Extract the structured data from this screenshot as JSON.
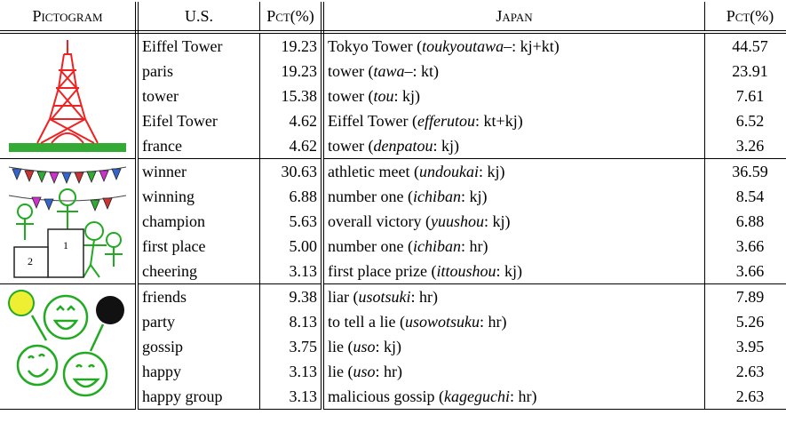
{
  "header": {
    "pictogram": "Pictogram",
    "us": "U.S.",
    "us_pct": "Pct(%)",
    "japan": "Japan",
    "japan_pct": "Pct(%)"
  },
  "groups": [
    {
      "rows": [
        {
          "us": "Eiffel Tower",
          "us_pct": "19.23",
          "japan": [
            "Tokyo Tower (",
            "toukyoutawa–",
            ": kj+kt)"
          ],
          "japan_pct": "44.57"
        },
        {
          "us": "paris",
          "us_pct": "19.23",
          "japan": [
            "tower (",
            "tawa–",
            ": kt)"
          ],
          "japan_pct": "23.91"
        },
        {
          "us": "tower",
          "us_pct": "15.38",
          "japan": [
            "tower (",
            "tou",
            ": kj)"
          ],
          "japan_pct": "7.61"
        },
        {
          "us": "Eifel Tower",
          "us_pct": "4.62",
          "japan": [
            "Eiffel Tower (",
            "efferutou",
            ": kt+kj)"
          ],
          "japan_pct": "6.52"
        },
        {
          "us": "france",
          "us_pct": "4.62",
          "japan": [
            "tower (",
            "denpatou",
            ": kj)"
          ],
          "japan_pct": "3.26"
        }
      ]
    },
    {
      "rows": [
        {
          "us": "winner",
          "us_pct": "30.63",
          "japan": [
            "athletic meet (",
            "undoukai",
            ": kj)"
          ],
          "japan_pct": "36.59"
        },
        {
          "us": "winning",
          "us_pct": "6.88",
          "japan": [
            "number one (",
            "ichiban",
            ": kj)"
          ],
          "japan_pct": "8.54"
        },
        {
          "us": "champion",
          "us_pct": "5.63",
          "japan": [
            "overall victory (",
            "yuushou",
            ": kj)"
          ],
          "japan_pct": "6.88"
        },
        {
          "us": "first place",
          "us_pct": "5.00",
          "japan": [
            "number one (",
            "ichiban",
            ": hr)"
          ],
          "japan_pct": "3.66"
        },
        {
          "us": "cheering",
          "us_pct": "3.13",
          "japan": [
            "first place prize (",
            "ittoushou",
            ": kj)"
          ],
          "japan_pct": "3.66"
        }
      ]
    },
    {
      "rows": [
        {
          "us": "friends",
          "us_pct": "9.38",
          "japan": [
            "liar (",
            "usotsuki",
            ": hr)"
          ],
          "japan_pct": "7.89"
        },
        {
          "us": "party",
          "us_pct": "8.13",
          "japan": [
            "to tell a lie (",
            "usowotsuku",
            ": hr)"
          ],
          "japan_pct": "5.26"
        },
        {
          "us": "gossip",
          "us_pct": "3.75",
          "japan": [
            "lie (",
            "uso",
            ": kj)"
          ],
          "japan_pct": "3.95"
        },
        {
          "us": "happy",
          "us_pct": "3.13",
          "japan": [
            "lie (",
            "uso",
            ": hr)"
          ],
          "japan_pct": "2.63"
        },
        {
          "us": "happy group",
          "us_pct": "3.13",
          "japan": [
            "malicious gossip (",
            "kageguchi",
            ": hr)"
          ],
          "japan_pct": "2.63"
        }
      ]
    }
  ]
}
